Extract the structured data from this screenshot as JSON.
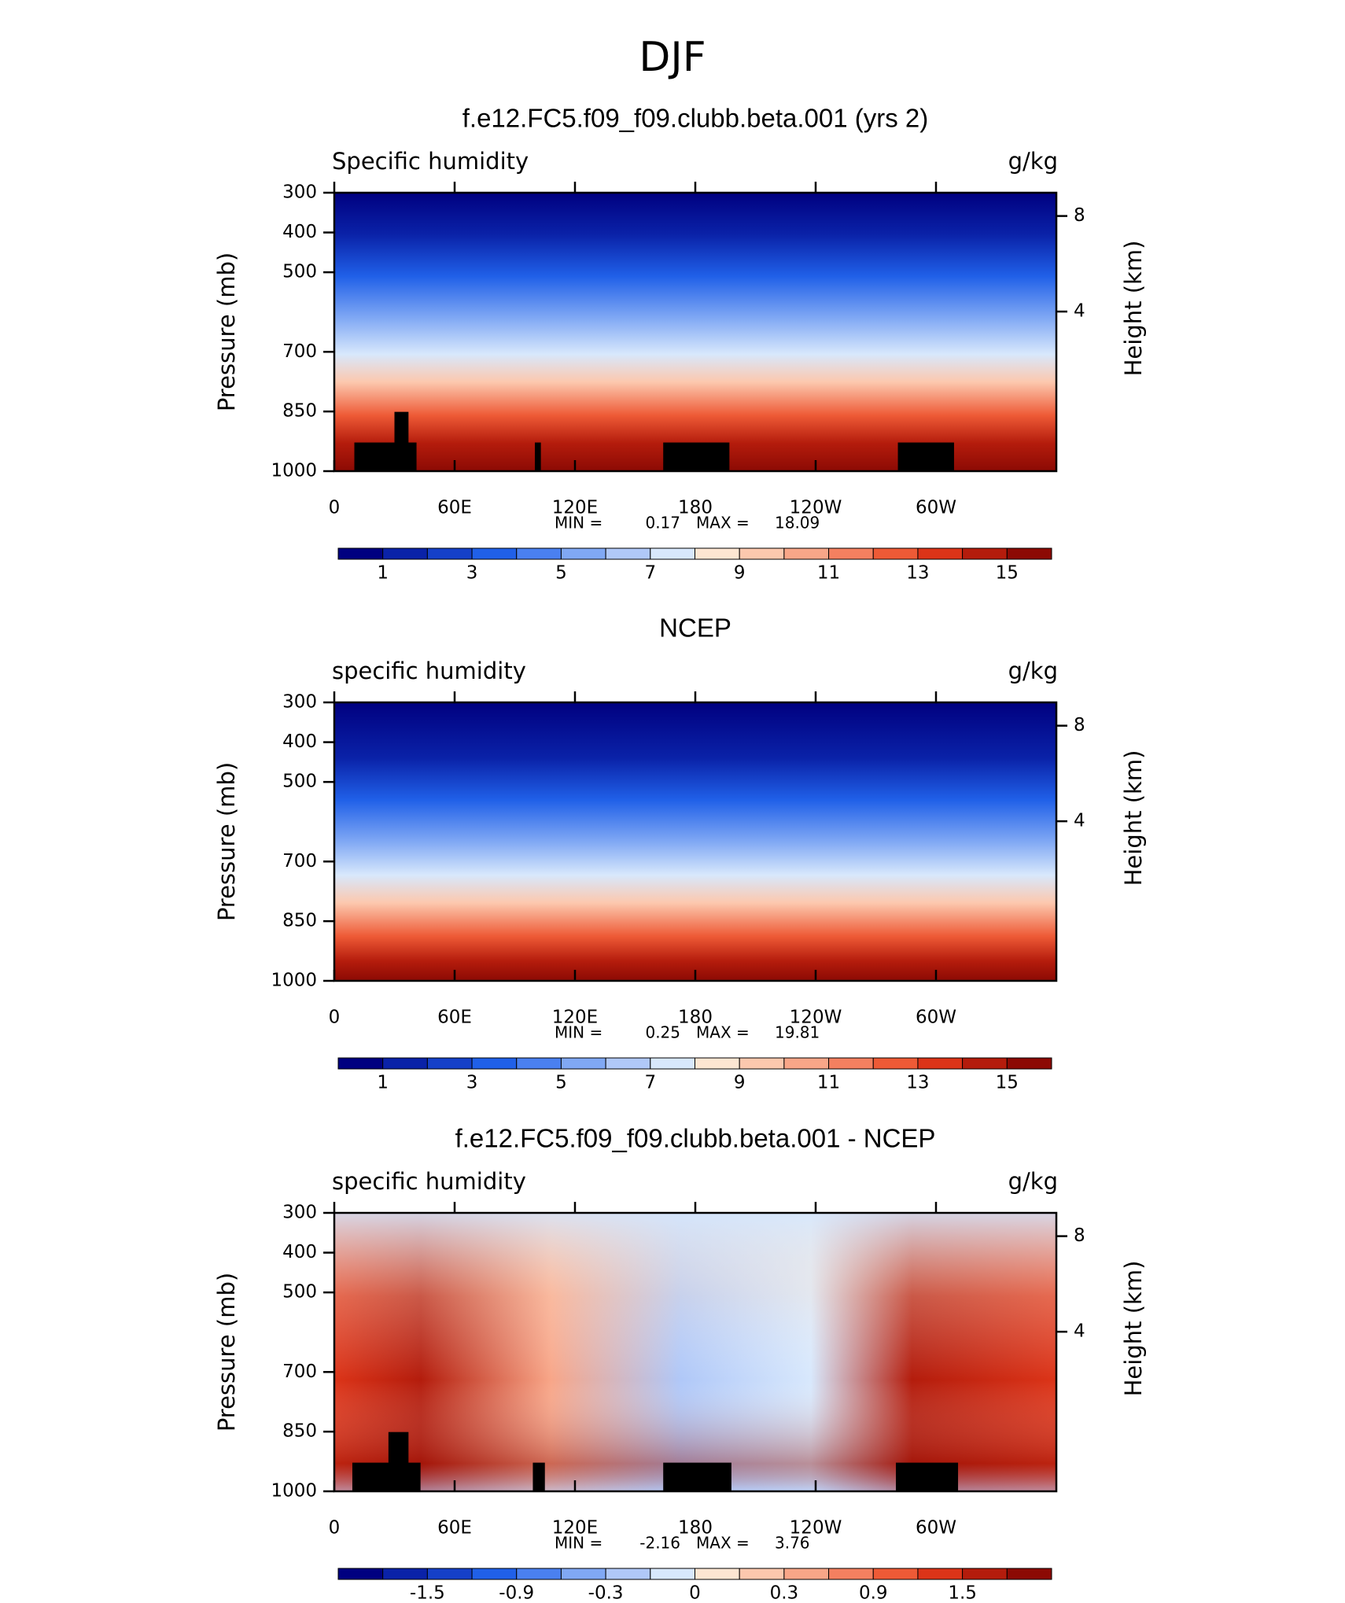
{
  "title": "DJF",
  "chart_data": [
    {
      "type": "contour",
      "title": "f.e12.FC5.f09_f09.clubb.beta.001 (yrs 2)",
      "left_label": "Specific humidity",
      "right_label": "g/kg",
      "ylabel": "Pressure (mb)",
      "y2label": "Height (km)",
      "xlim": [
        0,
        360
      ],
      "xticks": [
        0,
        {
          "value": 60,
          "label": "60E"
        },
        {
          "value": 120,
          "label": "120E"
        },
        180,
        {
          "value": 240,
          "label": "120W"
        },
        {
          "value": 300,
          "label": "60W"
        }
      ],
      "ylim": [
        1000,
        300
      ],
      "yticks": [
        300,
        400,
        500,
        700,
        850,
        1000
      ],
      "y2ticks": [
        4,
        8
      ],
      "min_label": "MIN =",
      "min": 0.17,
      "max_label": "MAX =",
      "max": 18.09,
      "colorbar": {
        "colors": [
          "#000080",
          "#0a22a8",
          "#1540c8",
          "#2060e8",
          "#4a80f0",
          "#80a8f4",
          "#b0c8f8",
          "#d8e8fc",
          "#fde6d2",
          "#fcc8ae",
          "#f8a688",
          "#f48060",
          "#ee5a36",
          "#dc3418",
          "#b41c0c",
          "#8c0a04"
        ],
        "ticks": [
          1,
          3,
          5,
          7,
          9,
          11,
          13,
          15
        ]
      }
    },
    {
      "type": "contour",
      "title": "NCEP",
      "left_label": "specific humidity",
      "right_label": "g/kg",
      "ylabel": "Pressure (mb)",
      "y2label": "Height (km)",
      "xlim": [
        0,
        360
      ],
      "xticks": [
        0,
        {
          "value": 60,
          "label": "60E"
        },
        {
          "value": 120,
          "label": "120E"
        },
        180,
        {
          "value": 240,
          "label": "120W"
        },
        {
          "value": 300,
          "label": "60W"
        }
      ],
      "ylim": [
        1000,
        300
      ],
      "yticks": [
        300,
        400,
        500,
        700,
        850,
        1000
      ],
      "y2ticks": [
        4,
        8
      ],
      "min_label": "MIN =",
      "min": 0.25,
      "max_label": "MAX =",
      "max": 19.81,
      "colorbar": {
        "colors": [
          "#000080",
          "#0a22a8",
          "#1540c8",
          "#2060e8",
          "#4a80f0",
          "#80a8f4",
          "#b0c8f8",
          "#d8e8fc",
          "#fde6d2",
          "#fcc8ae",
          "#f8a688",
          "#f48060",
          "#ee5a36",
          "#dc3418",
          "#b41c0c",
          "#8c0a04"
        ],
        "ticks": [
          1,
          3,
          5,
          7,
          9,
          11,
          13,
          15
        ]
      }
    },
    {
      "type": "contour",
      "title": "f.e12.FC5.f09_f09.clubb.beta.001 - NCEP",
      "left_label": "specific humidity",
      "right_label": "g/kg",
      "ylabel": "Pressure (mb)",
      "y2label": "Height (km)",
      "xlim": [
        0,
        360
      ],
      "xticks": [
        0,
        {
          "value": 60,
          "label": "60E"
        },
        {
          "value": 120,
          "label": "120E"
        },
        180,
        {
          "value": 240,
          "label": "120W"
        },
        {
          "value": 300,
          "label": "60W"
        }
      ],
      "ylim": [
        1000,
        300
      ],
      "yticks": [
        300,
        400,
        500,
        700,
        850,
        1000
      ],
      "y2ticks": [
        4,
        8
      ],
      "min_label": "MIN =",
      "min": -2.16,
      "max_label": "MAX =",
      "max": 3.76,
      "colorbar": {
        "colors": [
          "#000080",
          "#0a22a8",
          "#1540c8",
          "#2060e8",
          "#4a80f0",
          "#80a8f4",
          "#b0c8f8",
          "#d8e8fc",
          "#fde6d2",
          "#fcc8ae",
          "#f8a688",
          "#f48060",
          "#ee5a36",
          "#dc3418",
          "#b41c0c",
          "#8c0a04"
        ],
        "ticks": [
          -1.5,
          -0.9,
          -0.3,
          0,
          0.3,
          0.9,
          1.5
        ]
      }
    }
  ]
}
